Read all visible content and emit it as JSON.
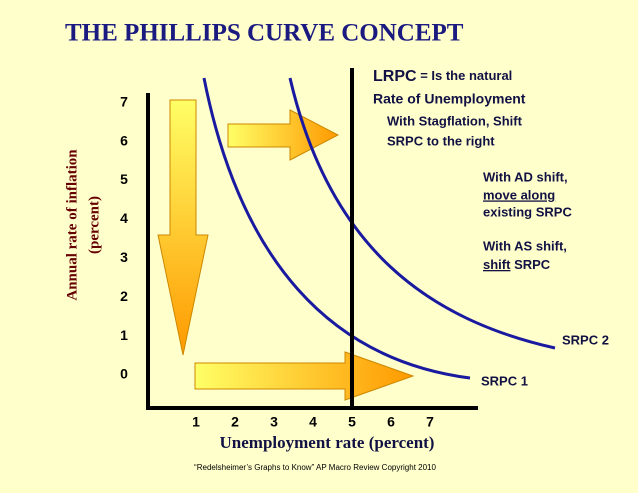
{
  "title": "THE PHILLIPS CURVE CONCEPT",
  "y_axis": {
    "title_line1": "Annual rate of inflation",
    "title_line2": "(percent)",
    "ticks": [
      0,
      1,
      2,
      3,
      4,
      5,
      6,
      7
    ]
  },
  "x_axis": {
    "title": "Unemployment rate (percent)",
    "ticks": [
      1,
      2,
      3,
      4,
      5,
      6,
      7
    ]
  },
  "lrpc": {
    "label": "LRPC",
    "text1": "= Is the natural",
    "text2": "Rate of Unemployment"
  },
  "stagflation": {
    "line1": "With Stagflation, Shift",
    "line2": "SRPC to the right"
  },
  "ad_shift": {
    "line1": "With AD shift,",
    "line2": "move along",
    "line3": "existing SRPC"
  },
  "as_shift": {
    "line1": "With AS shift,",
    "line2_underlined": "shift",
    "line2_rest": "SRPC"
  },
  "curves": {
    "srpc1": "SRPC 1",
    "srpc2": "SRPC 2"
  },
  "footer": "“Redelsheimer’s Graphs to Know”  AP Macro Review Copyright 2010"
}
